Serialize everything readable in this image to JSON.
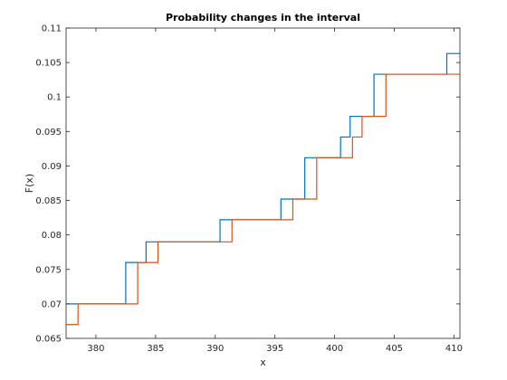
{
  "chart_data": {
    "type": "line",
    "title": "Probability changes in the interval",
    "xlabel": "x",
    "ylabel": "F(x)",
    "xlim": [
      377.5,
      410.5
    ],
    "ylim": [
      0.065,
      0.11
    ],
    "grid": false,
    "step": true,
    "xticks": [
      380,
      385,
      390,
      395,
      400,
      405,
      410
    ],
    "xtick_labels": [
      "380",
      "385",
      "390",
      "395",
      "400",
      "405",
      "410"
    ],
    "yticks": [
      0.065,
      0.07,
      0.075,
      0.08,
      0.085,
      0.09,
      0.095,
      0.1,
      0.105,
      0.11
    ],
    "ytick_labels": [
      "0.065",
      "0.07",
      "0.075",
      "0.08",
      "0.085",
      "0.09",
      "0.095",
      "0.1",
      "0.105",
      "0.11"
    ],
    "series": [
      {
        "color": "#0072BD",
        "x": [
          377.5,
          382.5,
          384.2,
          390.4,
          395.5,
          397.5,
          400.5,
          401.3,
          403.3,
          409.4,
          410.5
        ],
        "y": [
          0.07,
          0.076,
          0.079,
          0.0822,
          0.0852,
          0.0912,
          0.0942,
          0.0972,
          0.1033,
          0.1063,
          0.1063
        ]
      },
      {
        "color": "#D95319",
        "x": [
          377.5,
          378.5,
          383.5,
          385.2,
          391.4,
          396.5,
          398.5,
          401.5,
          402.3,
          404.3,
          410.5
        ],
        "y": [
          0.067,
          0.07,
          0.076,
          0.079,
          0.0822,
          0.0852,
          0.0912,
          0.0942,
          0.0972,
          0.1033,
          0.1033
        ]
      }
    ]
  }
}
